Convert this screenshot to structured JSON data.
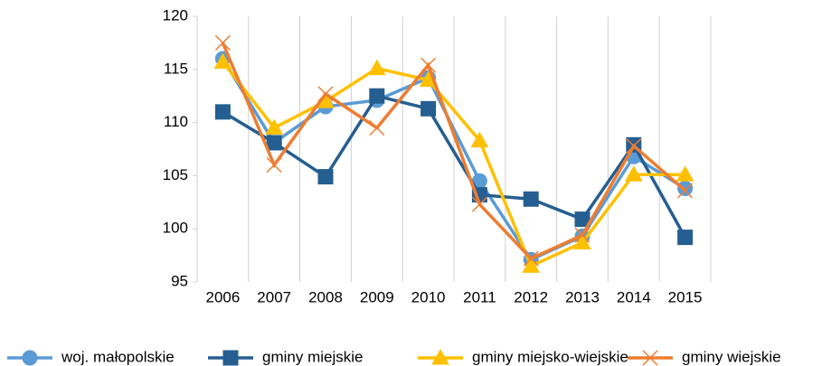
{
  "chart_data": {
    "type": "line",
    "categories": [
      "2006",
      "2007",
      "2008",
      "2009",
      "2010",
      "2011",
      "2012",
      "2013",
      "2014",
      "2015"
    ],
    "series": [
      {
        "name": "woj. małopolskie",
        "color": "#5b9bd5",
        "marker": "circle",
        "values": [
          116.0,
          108.1,
          111.5,
          112.1,
          114.2,
          104.5,
          97.1,
          99.3,
          106.8,
          103.8
        ]
      },
      {
        "name": "gminy miejskie",
        "color": "#255e91",
        "marker": "square",
        "values": [
          111.0,
          108.1,
          104.9,
          112.5,
          111.3,
          103.2,
          102.8,
          100.9,
          107.9,
          99.2
        ]
      },
      {
        "name": "gminy miejsko-wiejskie",
        "color": "#ffc000",
        "marker": "triangle",
        "values": [
          115.7,
          109.5,
          112.0,
          115.1,
          114.0,
          108.3,
          96.5,
          98.7,
          105.1,
          105.1
        ]
      },
      {
        "name": "gminy wiejskie",
        "color": "#ed7d31",
        "marker": "x",
        "values": [
          117.5,
          106.0,
          112.7,
          109.5,
          115.4,
          102.3,
          97.2,
          99.4,
          107.8,
          103.6
        ]
      }
    ],
    "ylim": [
      95,
      120
    ],
    "yticks": [
      95,
      100,
      105,
      110,
      115,
      120
    ],
    "grid": "x",
    "legend": "bottom"
  }
}
